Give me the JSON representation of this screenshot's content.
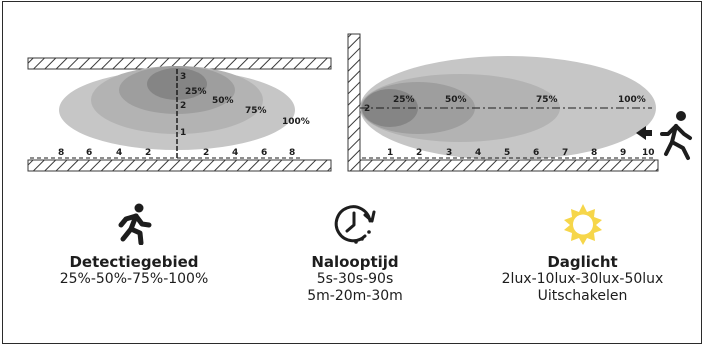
{
  "side_view": {
    "scale_left": [
      "8",
      "6",
      "4",
      "2"
    ],
    "scale_right": [
      "2",
      "4",
      "6",
      "8"
    ],
    "height_marks": [
      "3",
      "2",
      "1"
    ],
    "zones": [
      "25%",
      "50%",
      "75%",
      "100%"
    ]
  },
  "top_view": {
    "height_marks": [
      "2"
    ],
    "scale": [
      "1",
      "2",
      "3",
      "4",
      "5",
      "6",
      "7",
      "8",
      "9",
      "10"
    ],
    "zones": [
      "25%",
      "50%",
      "75%",
      "100%"
    ]
  },
  "features": {
    "detection": {
      "icon": "running-person-icon",
      "title": "Detectiegebied",
      "lines": [
        "25%-50%-75%-100%"
      ]
    },
    "hold_time": {
      "icon": "timer-icon",
      "title": "Nalooptijd",
      "lines": [
        "5s-30s-90s",
        "5m-20m-30m"
      ]
    },
    "daylight": {
      "icon": "sun-icon",
      "title": "Daglicht",
      "lines": [
        "2lux-10lux-30lux-50lux",
        "Uitschakelen"
      ]
    }
  },
  "colors": {
    "zone_100": "#c6c6c6",
    "zone_75": "#b3b3b3",
    "zone_50": "#9e9e9e",
    "zone_25": "#858585",
    "sun": "#f6d64a"
  }
}
